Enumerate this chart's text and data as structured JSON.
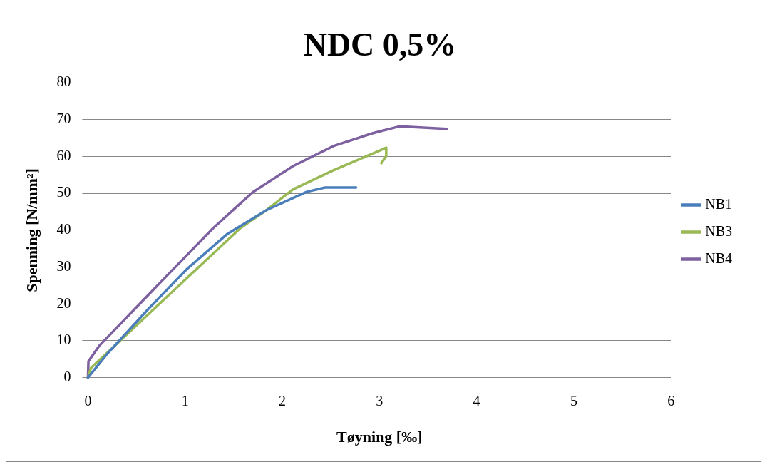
{
  "chart_data": {
    "type": "line",
    "title": "NDC 0,5%",
    "xlabel": "Tøyning [‰]",
    "ylabel": "Spenning [N/mm²]",
    "xlim": [
      0,
      6
    ],
    "xticks": [
      0,
      1,
      2,
      3,
      4,
      5,
      6
    ],
    "ylim": [
      0,
      80
    ],
    "yticks": [
      0,
      10,
      20,
      30,
      40,
      50,
      60,
      70,
      80
    ],
    "grid": "y",
    "legend": "right",
    "marker": "none",
    "line_style": "solid",
    "series": [
      {
        "name": "NB1",
        "color": "#4a7ebb",
        "x": [
          0,
          0.2,
          0.61,
          1.02,
          1.43,
          1.84,
          2.25,
          2.44,
          2.76
        ],
        "values": [
          0,
          6.5,
          18.3,
          29.5,
          38.9,
          45.5,
          50.4,
          51.6,
          51.6
        ]
      },
      {
        "name": "NB3",
        "color": "#98b954",
        "x": [
          0,
          0.03,
          0.33,
          0.75,
          1.16,
          1.57,
          1.84,
          2.11,
          2.53,
          2.94,
          3.07,
          3.07,
          3.02
        ],
        "values": [
          0,
          2.6,
          10,
          20.4,
          30.5,
          40.6,
          45.5,
          51.1,
          56.3,
          60.9,
          62.4,
          60.1,
          58.2
        ]
      },
      {
        "name": "NB4",
        "color": "#7d60a0",
        "x": [
          0,
          0.005,
          0.115,
          0.47,
          0.88,
          1.29,
          1.7,
          2.11,
          2.53,
          2.94,
          3.21,
          3.69
        ],
        "values": [
          0,
          4.4,
          8.6,
          18.3,
          29.5,
          40.6,
          50.4,
          57.4,
          62.9,
          66.4,
          68.2,
          67.5
        ]
      }
    ]
  }
}
